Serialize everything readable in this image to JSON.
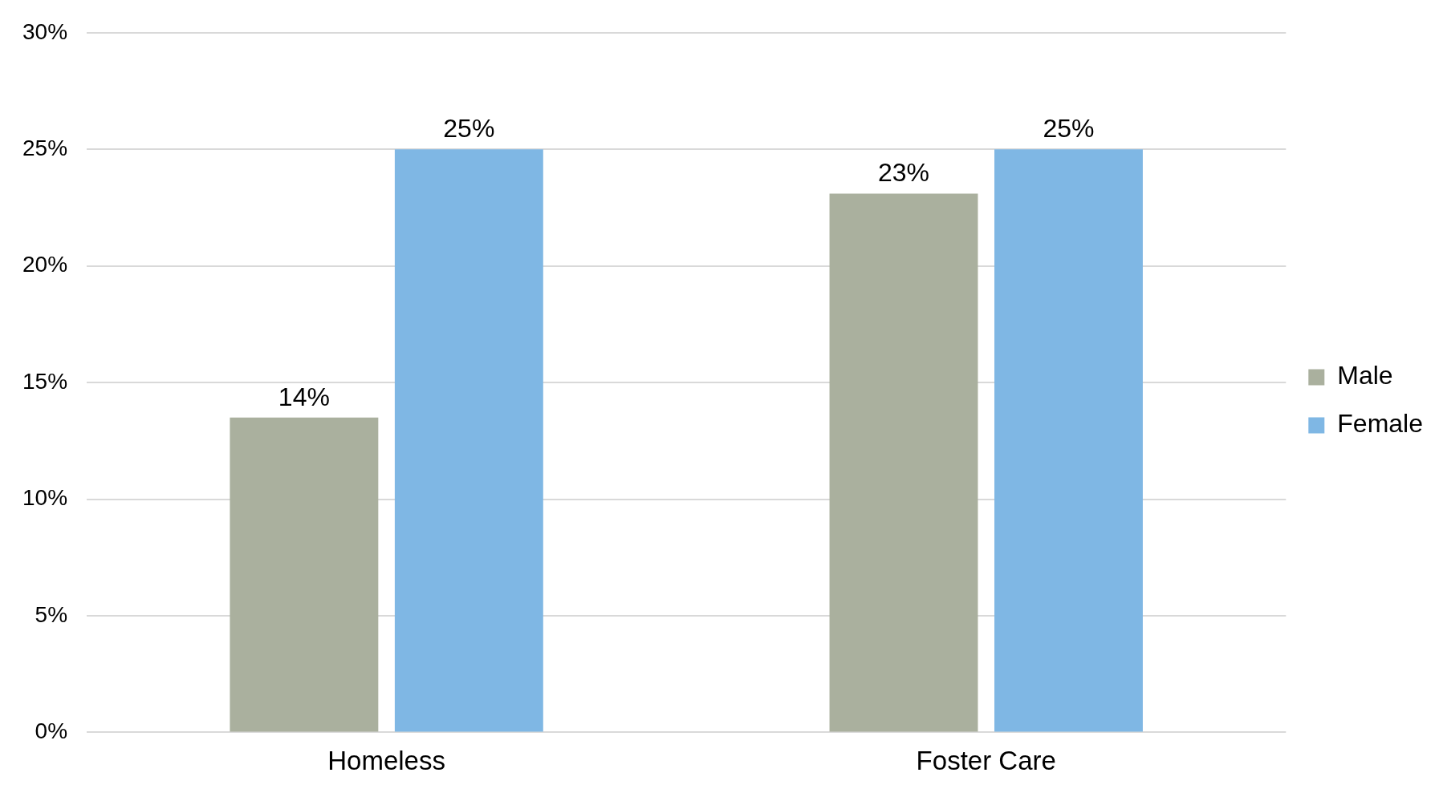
{
  "chart_data": {
    "type": "bar",
    "categories": [
      "Homeless",
      "Foster Care"
    ],
    "series": [
      {
        "name": "Male",
        "color": "#aab09e",
        "values": [
          13.5,
          23.1
        ],
        "value_labels": [
          "14%",
          "23%"
        ]
      },
      {
        "name": "Female",
        "color": "#7fb7e4",
        "values": [
          25,
          25
        ],
        "value_labels": [
          "25%",
          "25%"
        ]
      }
    ],
    "ylim": [
      0,
      30
    ],
    "yticks": [
      {
        "value": 0,
        "label": "0%"
      },
      {
        "value": 5,
        "label": "5%"
      },
      {
        "value": 10,
        "label": "10%"
      },
      {
        "value": 15,
        "label": "15%"
      },
      {
        "value": 20,
        "label": "20%"
      },
      {
        "value": 25,
        "label": "25%"
      },
      {
        "value": 30,
        "label": "30%"
      }
    ],
    "grid": "y",
    "legend": "right"
  }
}
